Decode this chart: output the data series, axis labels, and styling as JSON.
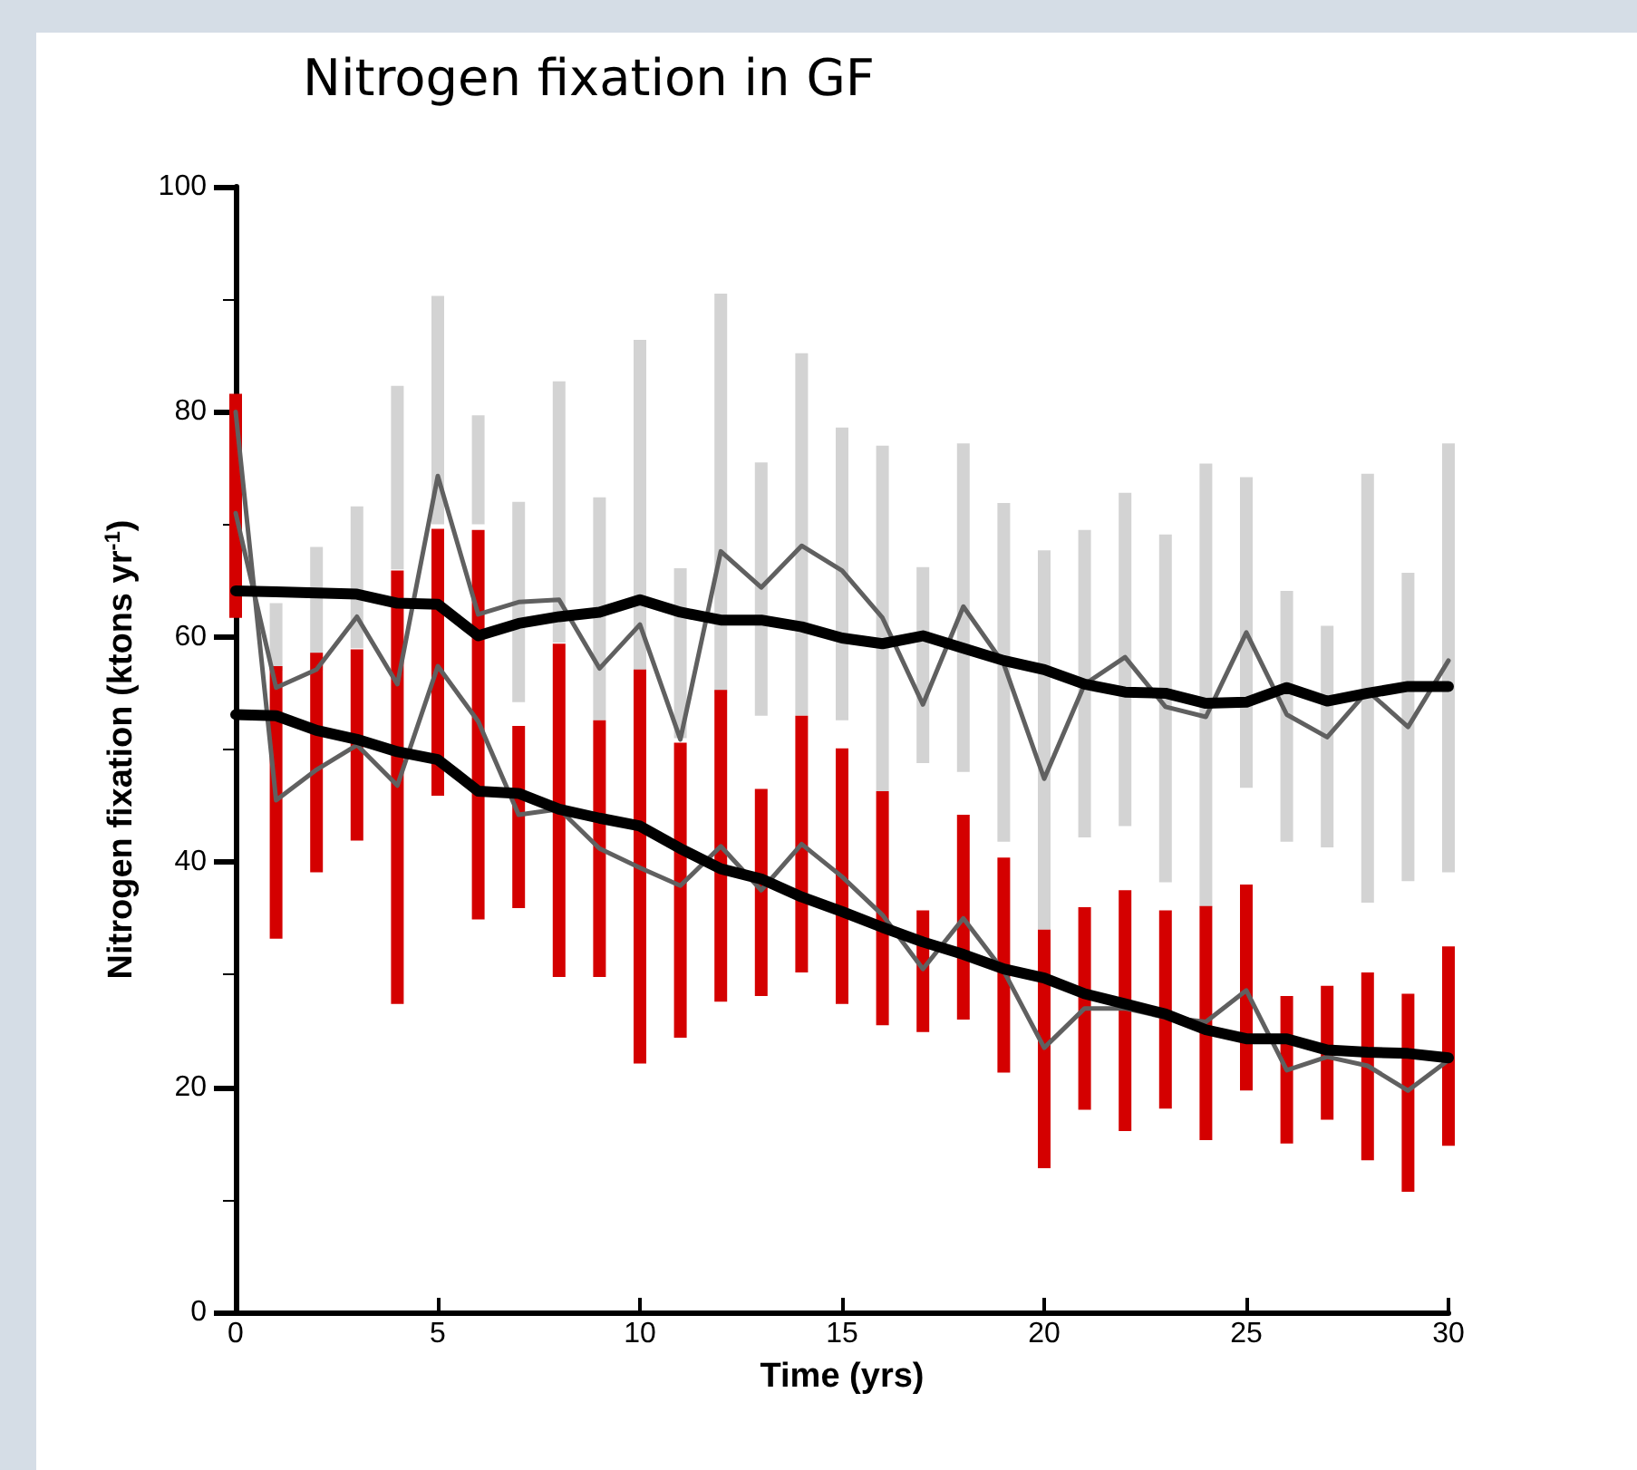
{
  "chart_data": {
    "type": "line",
    "title": "Nitrogen fixation in GF",
    "xlabel": "Time (yrs)",
    "ylabel": "Nitrogen fixation (ktons yr$^{-1}$)",
    "x": [
      0,
      1,
      2,
      3,
      4,
      5,
      6,
      7,
      8,
      9,
      10,
      11,
      12,
      13,
      14,
      15,
      16,
      17,
      18,
      19,
      20,
      21,
      22,
      23,
      24,
      25,
      26,
      27,
      28,
      29,
      30
    ],
    "xlim": [
      0,
      30
    ],
    "xticks": [
      0,
      5,
      10,
      15,
      20,
      25,
      30
    ],
    "ylim": [
      0,
      100
    ],
    "yticks": [
      0,
      20,
      40,
      60,
      80,
      100
    ],
    "grid": false,
    "marker": "none",
    "line_style": "solid",
    "series": [
      {
        "type": "bar",
        "color": "#d3d3d3",
        "base": [
          null,
          57,
          57,
          59,
          66,
          70,
          70,
          54.2,
          59.5,
          52.6,
          57,
          51,
          55,
          53,
          53,
          52.6,
          46.3,
          48.8,
          48,
          41.8,
          34,
          42.2,
          43.2,
          38.2,
          36,
          46.6,
          41.8,
          41.3,
          36.4,
          38.3,
          39.1
        ],
        "values": [
          null,
          6,
          11,
          12.6,
          16.3,
          20.3,
          9.7,
          17.8,
          23.2,
          19.8,
          29.4,
          15.1,
          35.5,
          22.5,
          32.2,
          26,
          30.7,
          17.4,
          29.2,
          30.1,
          33.7,
          27.3,
          29.6,
          30.9,
          39.4,
          27.6,
          22.3,
          19.7,
          38.1,
          27.4,
          38.1
        ]
      },
      {
        "type": "bar",
        "color": "#d40000",
        "base": [
          61.7,
          33.2,
          39.1,
          41.9,
          27.4,
          45.9,
          34.9,
          35.9,
          29.8,
          29.8,
          22.1,
          24.4,
          27.6,
          28.1,
          30.2,
          27.4,
          25.5,
          24.9,
          26,
          21.3,
          12.8,
          18,
          16.1,
          18.1,
          15.3,
          19.7,
          15,
          17.1,
          13.5,
          10.7,
          14.8
        ],
        "values": [
          19.9,
          24.2,
          19.5,
          17,
          38.5,
          23.7,
          34.6,
          16.2,
          29.6,
          22.8,
          35,
          26.2,
          27.7,
          18.4,
          22.8,
          22.7,
          20.8,
          10.8,
          18.2,
          19.1,
          21.2,
          18,
          21.4,
          17.6,
          20.8,
          18.3,
          13.1,
          11.9,
          16.7,
          17.6,
          17.7
        ]
      },
      {
        "color": "#606060",
        "values": [
          71,
          55.5,
          57.1,
          61.8,
          55.8,
          74.3,
          62,
          63.1,
          63.3,
          57.2,
          61.1,
          50.9,
          67.6,
          64.4,
          68.1,
          65.9,
          61.7,
          54,
          62.7,
          57.6,
          47.4,
          55.8,
          58.2,
          53.8,
          52.9,
          60.4,
          53.1,
          51.1,
          55.2,
          52,
          57.9
        ]
      },
      {
        "color": "#606060",
        "values": [
          80,
          45.5,
          48.2,
          50.4,
          46.8,
          57.4,
          52.5,
          44.2,
          44.7,
          41.2,
          39.5,
          37.9,
          41.4,
          37.5,
          41.6,
          38.7,
          35.3,
          30.5,
          35,
          30.3,
          23.5,
          27,
          27,
          26.2,
          25.8,
          28.6,
          21.5,
          22.7,
          21.9,
          19.7,
          22.4
        ]
      },
      {
        "color": "#000000",
        "values": [
          64.1,
          64,
          63.9,
          63.8,
          63,
          62.9,
          60.1,
          61.2,
          61.8,
          62.2,
          63.3,
          62.2,
          61.5,
          61.5,
          60.9,
          59.9,
          59.4,
          60.1,
          59,
          57.9,
          57.1,
          55.8,
          55.1,
          55,
          54.1,
          54.2,
          55.5,
          54.3,
          55,
          55.6,
          55.6
        ]
      },
      {
        "color": "#000000",
        "values": [
          53.1,
          53,
          51.7,
          50.9,
          49.8,
          49.1,
          46.3,
          46.1,
          44.7,
          43.9,
          43.2,
          41.2,
          39.4,
          38.5,
          36.9,
          35.6,
          34.2,
          32.9,
          31.8,
          30.5,
          29.7,
          28.3,
          27.4,
          26.5,
          25.1,
          24.3,
          24.3,
          23.3,
          23.1,
          23,
          22.6
        ]
      }
    ]
  }
}
